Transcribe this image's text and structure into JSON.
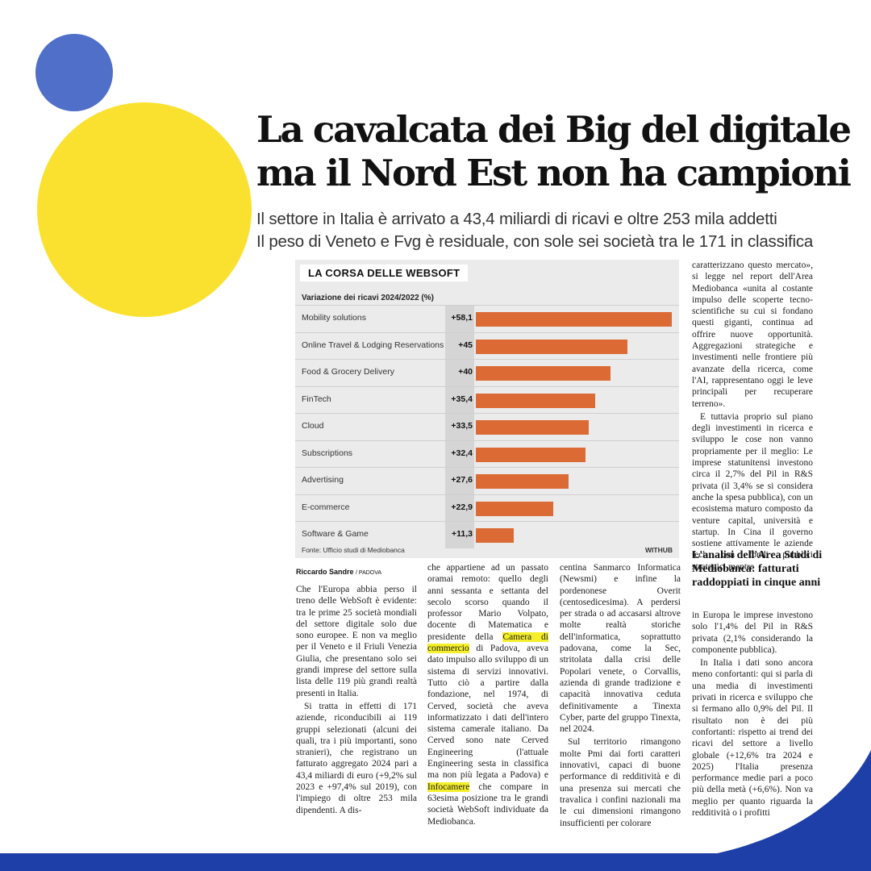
{
  "headline": {
    "line1": "La cavalcata dei Big del digitale",
    "line2": "ma il Nord Est non ha campioni"
  },
  "subhead": {
    "line1": "Il settore in Italia è arrivato a 43,4 miliardi di ricavi e oltre 253 mila addetti",
    "line2": "Il peso di Veneto e Fvg è residuale, con sole sei società tra le 171 in classifica"
  },
  "chart_data": {
    "type": "bar",
    "title": "LA CORSA DELLE WEBSOFT",
    "subtitle": "Variazione dei ricavi 2024/2022 (%)",
    "categories": [
      "Mobility solutions",
      "Online Travel & Lodging Reservations",
      "Food & Grocery Delivery",
      "FinTech",
      "Cloud",
      "Subscriptions",
      "Advertising",
      "E-commerce",
      "Software & Game"
    ],
    "values": [
      58.1,
      45,
      40,
      35.4,
      33.5,
      32.4,
      27.6,
      22.9,
      11.3
    ],
    "value_labels": [
      "+58,1",
      "+45",
      "+40",
      "+35,4",
      "+33,5",
      "+32,4",
      "+27,6",
      "+22,9",
      "+11,3"
    ],
    "xlim": [
      0,
      58.1
    ],
    "bar_color": "#dc6a35",
    "source": "Fonte: Ufficio studi di Mediobanca",
    "brand": "WITHUB"
  },
  "byline": {
    "author": "Riccardo Sandre",
    "place": "/ PADOVA"
  },
  "article": {
    "col1": [
      "Che l'Europa abbia perso il treno delle WebSoft è evidente: tra le prime 25 società mondiali del settore digitale solo due sono europee. E non va meglio per il Veneto e il Friuli Venezia Giulia, che presentano solo sei grandi imprese del settore sulla lista delle 119 più grandi realtà presenti in Italia.",
      "Si tratta in effetti di 171 aziende, riconducibili ai 119 gruppi selezionati (alcuni dei quali, tra i più importanti, sono stranieri), che registrano un fatturato aggregato 2024 pari a 43,4 miliardi di euro (+9,2% sul 2023 e +97,4% sul 2019), con l'impiego di oltre 253 mila dipendenti. A dis-"
    ],
    "col2_a": "che appartiene ad un passato oramai remoto: quello degli anni sessanta e settanta del secolo scorso quando il professor Mario Volpato, docente di Matematica e presidente della ",
    "col2_hl1": "Camera di commercio",
    "col2_b": " di Padova, aveva dato impulso allo sviluppo di un sistema di servizi innovativi. Tutto ciò a partire dalla fondazione, nel 1974, di Cerved, società che aveva informatizzato i dati dell'intero sistema camerale italiano. Da Cerved sono nate Cerved Engineering (l'attuale Engineering sesta in classifica ma non più legata a Padova) e ",
    "col2_hl2": "Infocamere",
    "col2_c": " che compare in 63esima posizione tra le grandi società WebSoft individuate da Mediobanca.",
    "col3": [
      "centina Sanmarco Informatica (Newsmi) e infine la pordenonese Overit (centosedicesima). A perdersi per strada o ad accasarsi altrove molte realtà storiche dell'informatica, soprattutto padovana, come la Sec, stritolata dalla crisi delle Popolari venete, o Corvallis, azienda di grande tradizione e capacità innovativa ceduta definitivamente a Tinexta Cyber, parte del gruppo Tinexta, nel 2024.",
      "Sul territorio rimangono molte Pmi dai forti caratteri innovativi, capaci di buone performance di redditività e di una presenza sui mercati che travalica i confini nazionali ma le cui dimensioni rimangono insufficienti per colorare"
    ],
    "col4_top": [
      "caratterizzano questo mercato», si legge nel report dell'Area Mediobanca «unita al costante impulso delle scoperte tecno-scientifiche su cui si fondano questi giganti, continua ad offrire nuove opportunità. Aggregazioni strategiche e investimenti nelle frontiere più avanzate della ricerca, come l'AI, rappresentano oggi le leve principali per recuperare terreno».",
      "E tuttavia proprio sul piano degli investimenti in ricerca e sviluppo le cose non vanno propriamente per il meglio: Le imprese statunitensi investono circa il 2,7% del Pil in R&S privata (il 3,4% se si considera anche la spesa pubblica), con un ecosistema maturo composto da venture capital, università e startup. In Cina il governo sostiene attivamente le aziende tech con fondi pubblici strategici mentre"
    ],
    "box_title": "L'analisi dell'Area Studi di Mediobanca: fatturati raddoppiati in cinque anni",
    "col4_bottom": [
      "in Europa le imprese investono solo l'1,4% del Pil in R&S privata (2,1% considerando la componente pubblica).",
      "In Italia i dati sono ancora meno confortanti: qui si parla di una media di investimenti privati in ricerca e sviluppo che si fermano allo 0,9% del Pil. Il risultato non è dei più confortanti: rispetto ai trend dei ricavi del settore a livello globale (+12,6% tra 2024 e 2025) l'Italia presenza performance medie pari a poco più della metà (+6,6%). Non va meglio per quanto riguarda la redditività o i profitti"
    ]
  }
}
